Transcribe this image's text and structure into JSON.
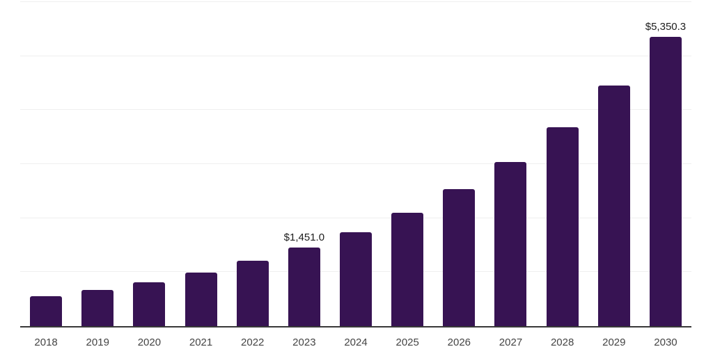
{
  "chart_data": {
    "type": "bar",
    "title": "",
    "xlabel": "",
    "ylabel": "",
    "categories": [
      "2018",
      "2019",
      "2020",
      "2021",
      "2022",
      "2023",
      "2024",
      "2025",
      "2026",
      "2027",
      "2028",
      "2029",
      "2030"
    ],
    "values": [
      555,
      665,
      810,
      990,
      1210,
      1451.0,
      1735,
      2095,
      2535,
      3035,
      3680,
      4450,
      5350.3
    ],
    "bar_labels": [
      "",
      "",
      "",
      "",
      "",
      "$1,451.0",
      "",
      "",
      "",
      "",
      "",
      "",
      "$5,350.3"
    ],
    "ylim": [
      0,
      6000
    ],
    "gridlines": [
      1000,
      2000,
      3000,
      4000,
      5000,
      6000
    ],
    "grid": "horizontal-only",
    "legend": "none",
    "y_tick_labels_visible": false
  },
  "colors": {
    "bar": "#371353",
    "grid": "#efefef",
    "axis": "#383838",
    "tick_label": "#444444",
    "data_label": "#1c1c1c",
    "background": "#ffffff"
  }
}
